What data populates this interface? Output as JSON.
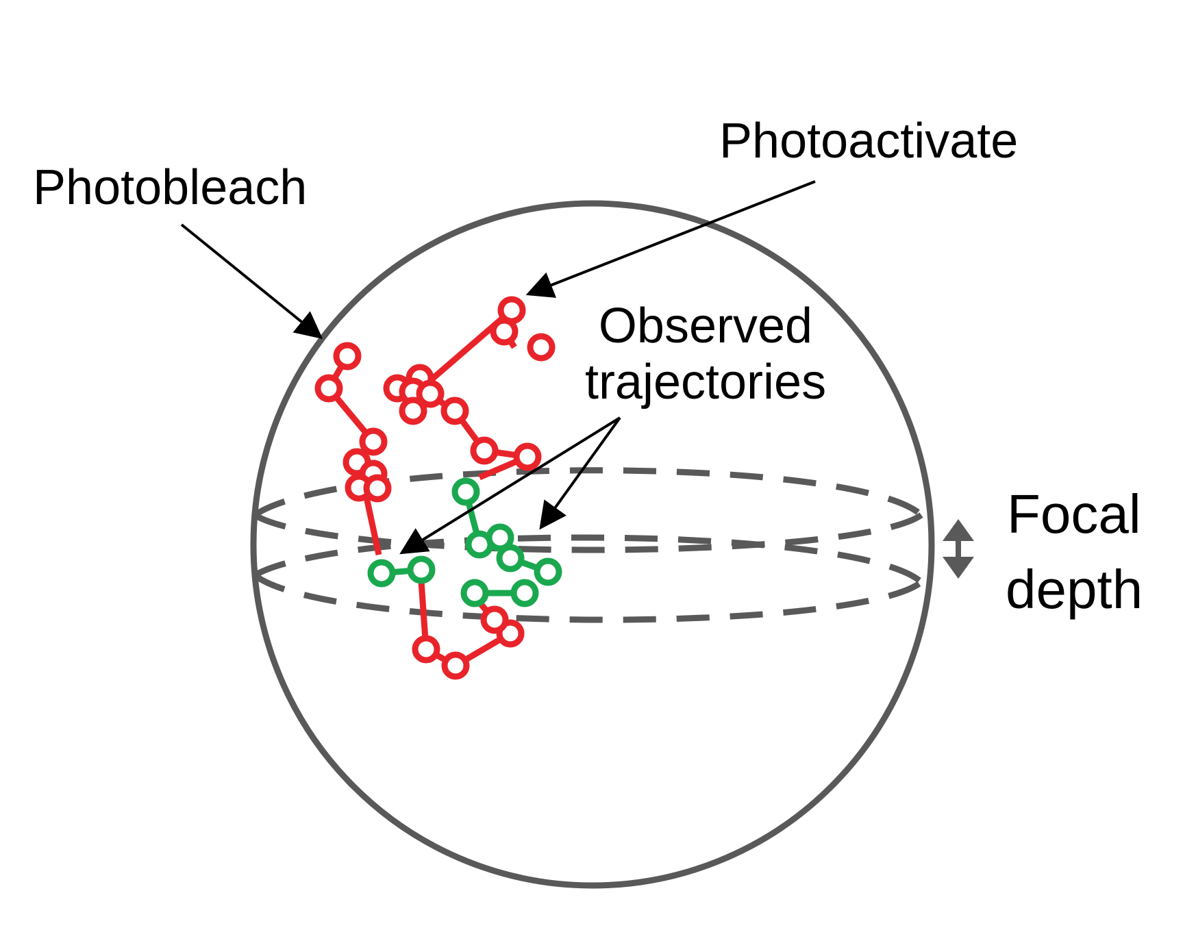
{
  "labels": {
    "photobleach": "Photobleach",
    "photoactivate": "Photoactivate",
    "observed_line1": "Observed",
    "observed_line2": "trajectories",
    "focal_line1": "Focal",
    "focal_line2": "depth"
  },
  "colors": {
    "outline": "#595959",
    "red_trajectory": "#e8242a",
    "green_trajectory": "#1aa84f",
    "arrow": "#000000",
    "background": "#ffffff"
  },
  "icons": {
    "focal_depth_indicator": "double-headed-vertical-arrow-icon"
  }
}
